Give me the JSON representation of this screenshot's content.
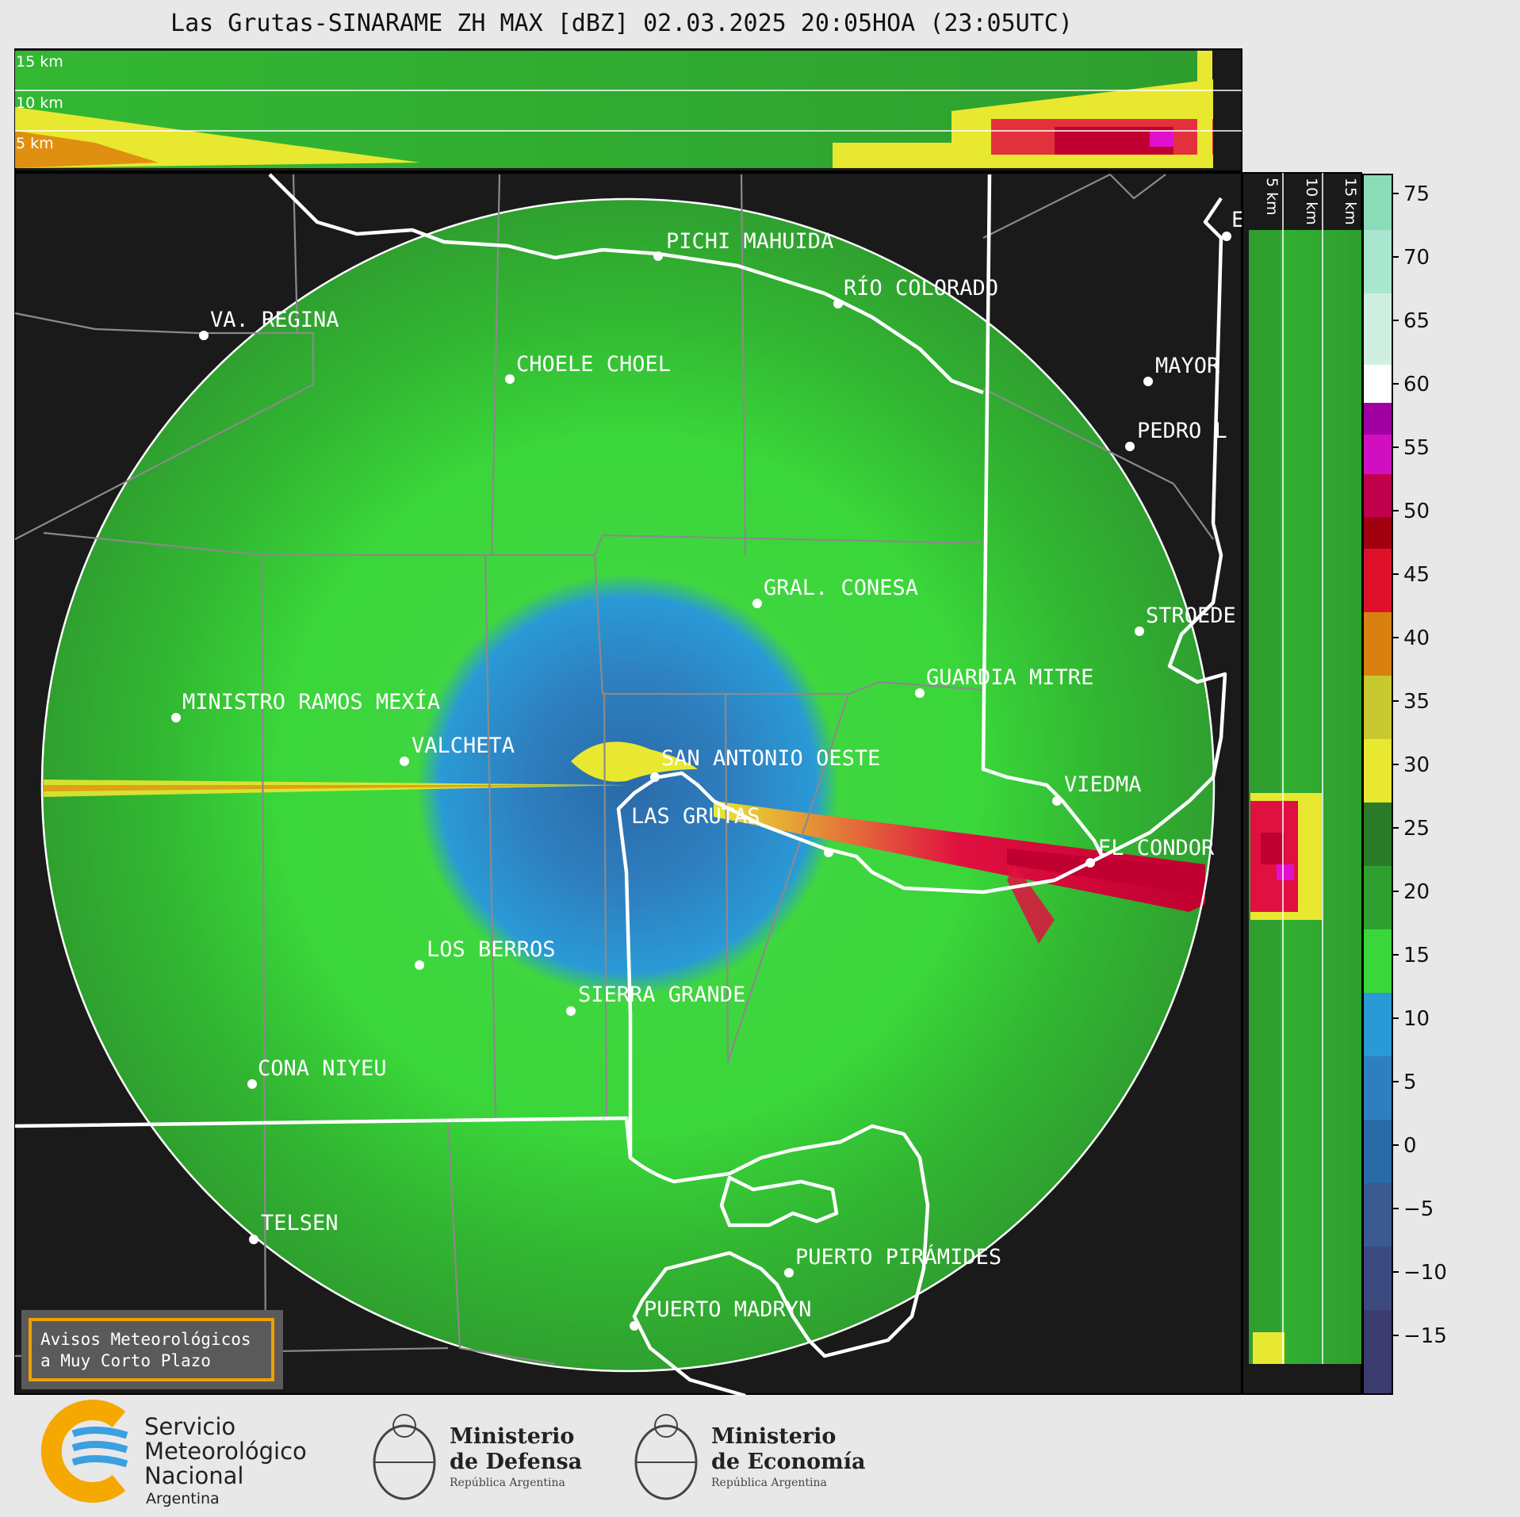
{
  "title": "Las Grutas-SINARAME ZH MAX [dBZ] 02.03.2025 20:05HOA (23:05UTC)",
  "top_panel_labels": [
    "15 km",
    "10 km",
    "5 km"
  ],
  "side_panel_labels": [
    "5 km",
    "10 km",
    "15 km"
  ],
  "colorbar": {
    "ticks": [
      "75",
      "70",
      "65",
      "60",
      "55",
      "50",
      "45",
      "40",
      "35",
      "30",
      "25",
      "20",
      "15",
      "10",
      "5",
      "0",
      "−5",
      "−10",
      "−15"
    ]
  },
  "cities": [
    {
      "name": "PICHI MAHUIDA"
    },
    {
      "name": "RÍO COLORADO"
    },
    {
      "name": "VA. REGINA"
    },
    {
      "name": "CHOELE CHOEL"
    },
    {
      "name": "MAYOR"
    },
    {
      "name": "PEDRO L"
    },
    {
      "name": "GRAL. CONESA"
    },
    {
      "name": "STROEDE"
    },
    {
      "name": "GUARDIA MITRE"
    },
    {
      "name": "MINISTRO RAMOS MEXÍA"
    },
    {
      "name": "VALCHETA"
    },
    {
      "name": "SAN ANTONIO OESTE"
    },
    {
      "name": "VIEDMA"
    },
    {
      "name": "LAS GRUTAS"
    },
    {
      "name": "EL CONDOR"
    },
    {
      "name": "LOS BERROS"
    },
    {
      "name": "SIERRA GRANDE"
    },
    {
      "name": "CONA NIYEU"
    },
    {
      "name": "TELSEN"
    },
    {
      "name": "PUERTO PIRÁMIDES"
    },
    {
      "name": "PUERTO MADRYN"
    },
    {
      "name": "E"
    }
  ],
  "warning_box": {
    "line1": "Avisos Meteorológicos",
    "line2": "a Muy Corto Plazo"
  },
  "logos": {
    "smn": {
      "line1": "Servicio",
      "line2": "Meteorológico",
      "line3": "Nacional",
      "line4": "Argentina"
    },
    "defensa": {
      "line1": "Ministerio",
      "line2": "de Defensa",
      "line3": "República Argentina"
    },
    "economia": {
      "line1": "Ministerio",
      "line2": "de Economía",
      "line3": "República Argentina"
    }
  },
  "colors": {
    "background": "#1a1a1a",
    "far_echo": "#3ad63a",
    "mid_echo": "#2fa82f",
    "near_echo": "#2a9ad6",
    "core_echo": "#2d78b8",
    "warning_border": "#f0a000"
  }
}
